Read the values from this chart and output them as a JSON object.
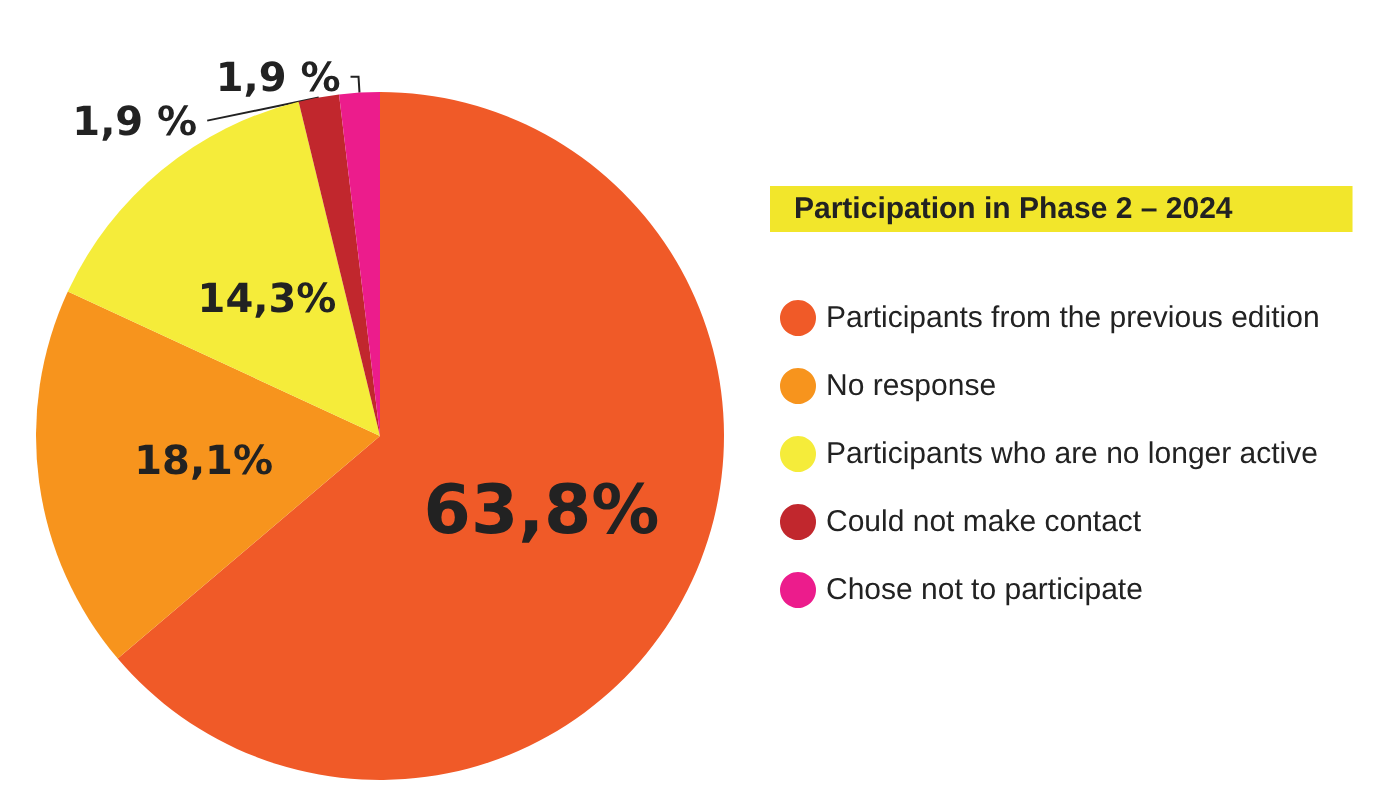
{
  "chart_data": {
    "type": "pie",
    "legend_title": "Participation in Phase 2 – 2024",
    "categories": [
      "Participants from the previous edition",
      "No response",
      "Participants who are no longer active",
      "Could not make contact",
      "Chose not to participate"
    ],
    "values": [
      63.8,
      18.1,
      14.3,
      1.9,
      1.9
    ],
    "colors": [
      "#f05a28",
      "#f7941d",
      "#f5ec3a",
      "#c1272d",
      "#ec1c8c"
    ],
    "value_labels": [
      "63,8%",
      "18,1%",
      "14,3%",
      "1,9 %",
      "1,9 %"
    ],
    "legend": "right"
  }
}
